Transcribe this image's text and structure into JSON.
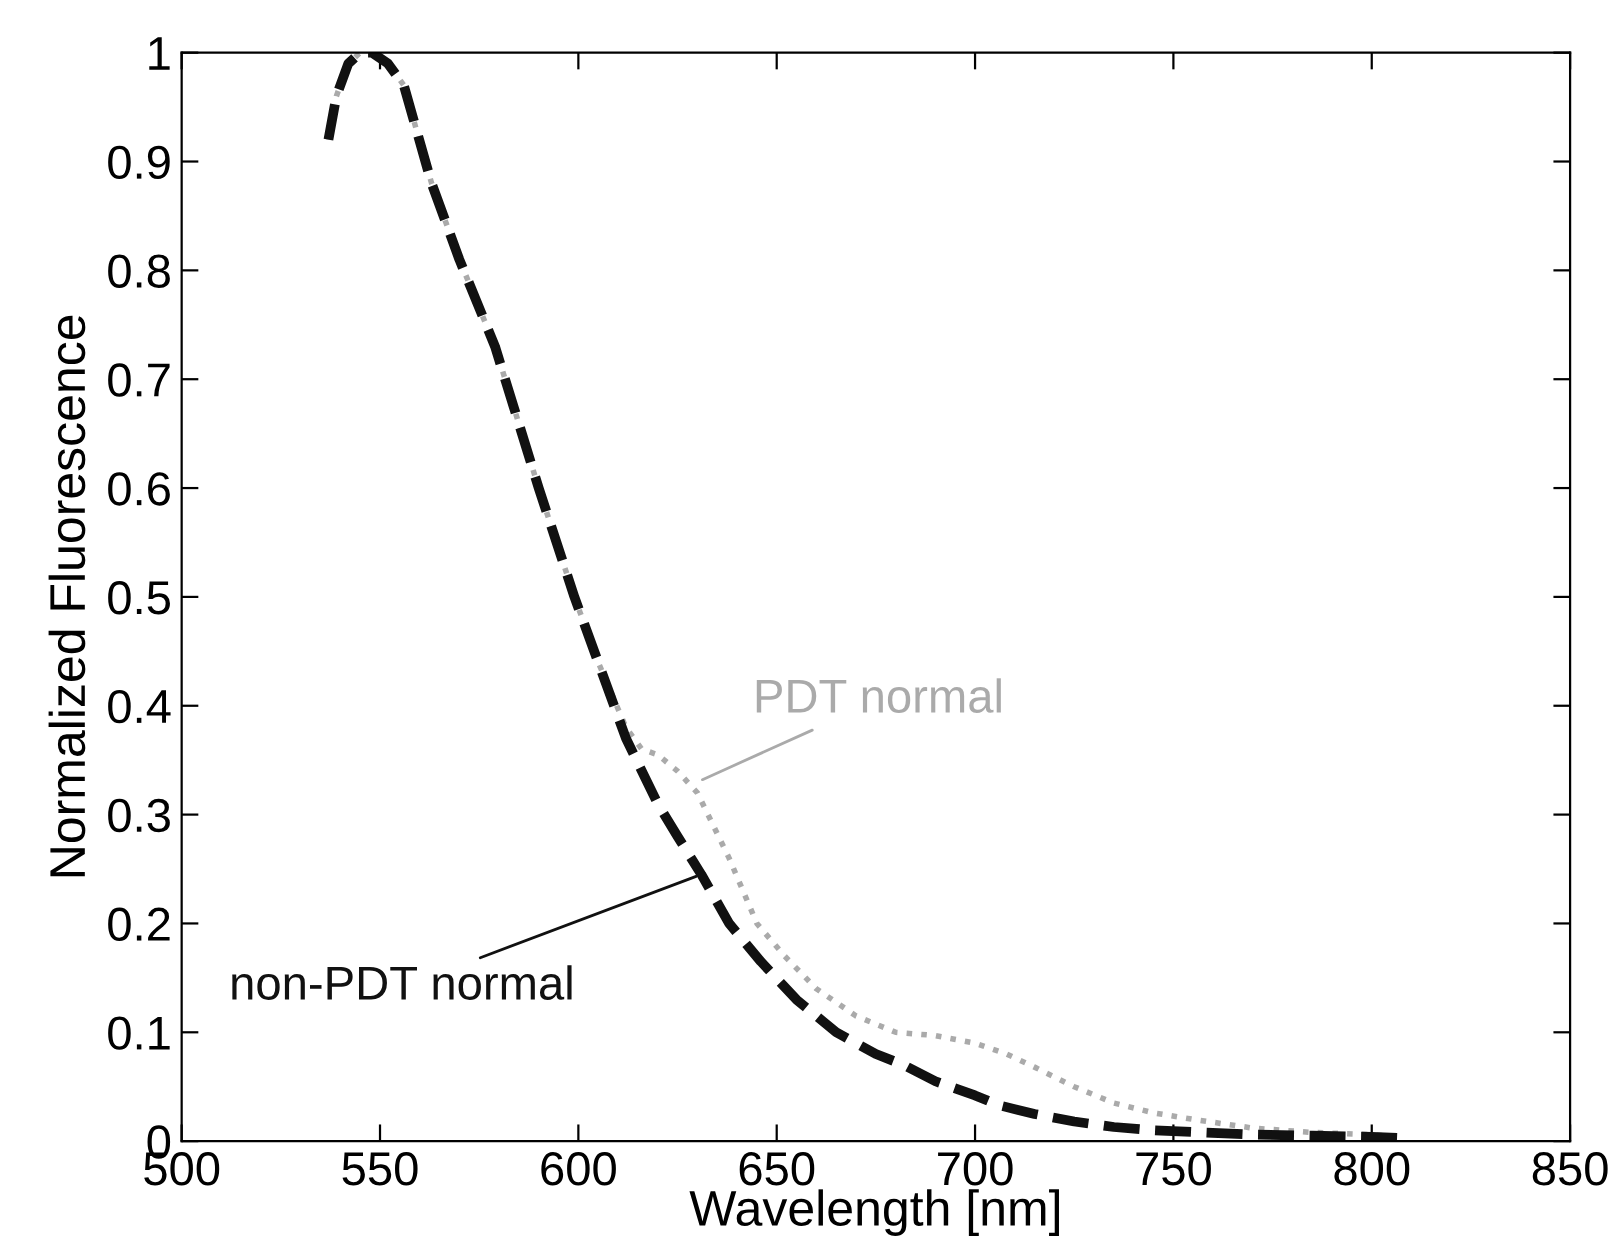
{
  "chart_data": {
    "type": "line",
    "xlabel": "Wavelength [nm]",
    "ylabel": "Normalized Fluorescence",
    "xlim": [
      500,
      850
    ],
    "xticks": [
      500,
      550,
      600,
      650,
      700,
      750,
      800,
      850
    ],
    "ylim": [
      0,
      1
    ],
    "yticks": [
      0,
      0.1,
      0.2,
      0.3,
      0.4,
      0.5,
      0.6,
      0.7,
      0.8,
      0.9,
      1
    ],
    "grid": false,
    "legend": false,
    "series": [
      {
        "color": "#aaaaaa",
        "line_style": "dotted",
        "x": [
          537,
          539,
          542,
          545,
          548,
          552,
          556,
          563,
          570,
          579,
          590,
          599,
          605,
          612,
          616,
          620,
          625,
          630,
          634,
          638,
          645,
          652,
          660,
          670,
          680,
          690,
          700,
          708,
          715,
          725,
          735,
          745,
          755,
          770,
          785,
          800,
          807
        ],
        "values": [
          0.92,
          0.96,
          0.99,
          1.0,
          1.0,
          0.99,
          0.97,
          0.88,
          0.81,
          0.73,
          0.6,
          0.5,
          0.44,
          0.38,
          0.36,
          0.355,
          0.34,
          0.32,
          0.29,
          0.26,
          0.2,
          0.17,
          0.14,
          0.115,
          0.1,
          0.097,
          0.09,
          0.08,
          0.068,
          0.05,
          0.035,
          0.026,
          0.02,
          0.012,
          0.008,
          0.006,
          0.004
        ]
      },
      {
        "color": "#111111",
        "line_style": "dashed",
        "x": [
          537,
          539,
          542,
          545,
          548,
          552,
          556,
          563,
          570,
          579,
          590,
          599,
          605,
          612,
          620,
          625,
          631,
          638,
          646,
          655,
          665,
          675,
          682,
          690,
          700,
          706,
          715,
          725,
          735,
          745,
          757,
          770,
          785,
          800,
          807
        ],
        "values": [
          0.92,
          0.96,
          0.99,
          1.0,
          1.0,
          0.99,
          0.97,
          0.88,
          0.81,
          0.73,
          0.6,
          0.5,
          0.44,
          0.37,
          0.31,
          0.28,
          0.245,
          0.2,
          0.165,
          0.13,
          0.1,
          0.08,
          0.07,
          0.055,
          0.042,
          0.033,
          0.025,
          0.018,
          0.013,
          0.01,
          0.008,
          0.006,
          0.005,
          0.004,
          0.003
        ]
      }
    ],
    "annotations": [
      {
        "text": "PDT normal",
        "x": 630,
        "y": 0.33
      },
      {
        "text": "non-PDT normal",
        "x": 631,
        "y": 0.245
      }
    ]
  }
}
